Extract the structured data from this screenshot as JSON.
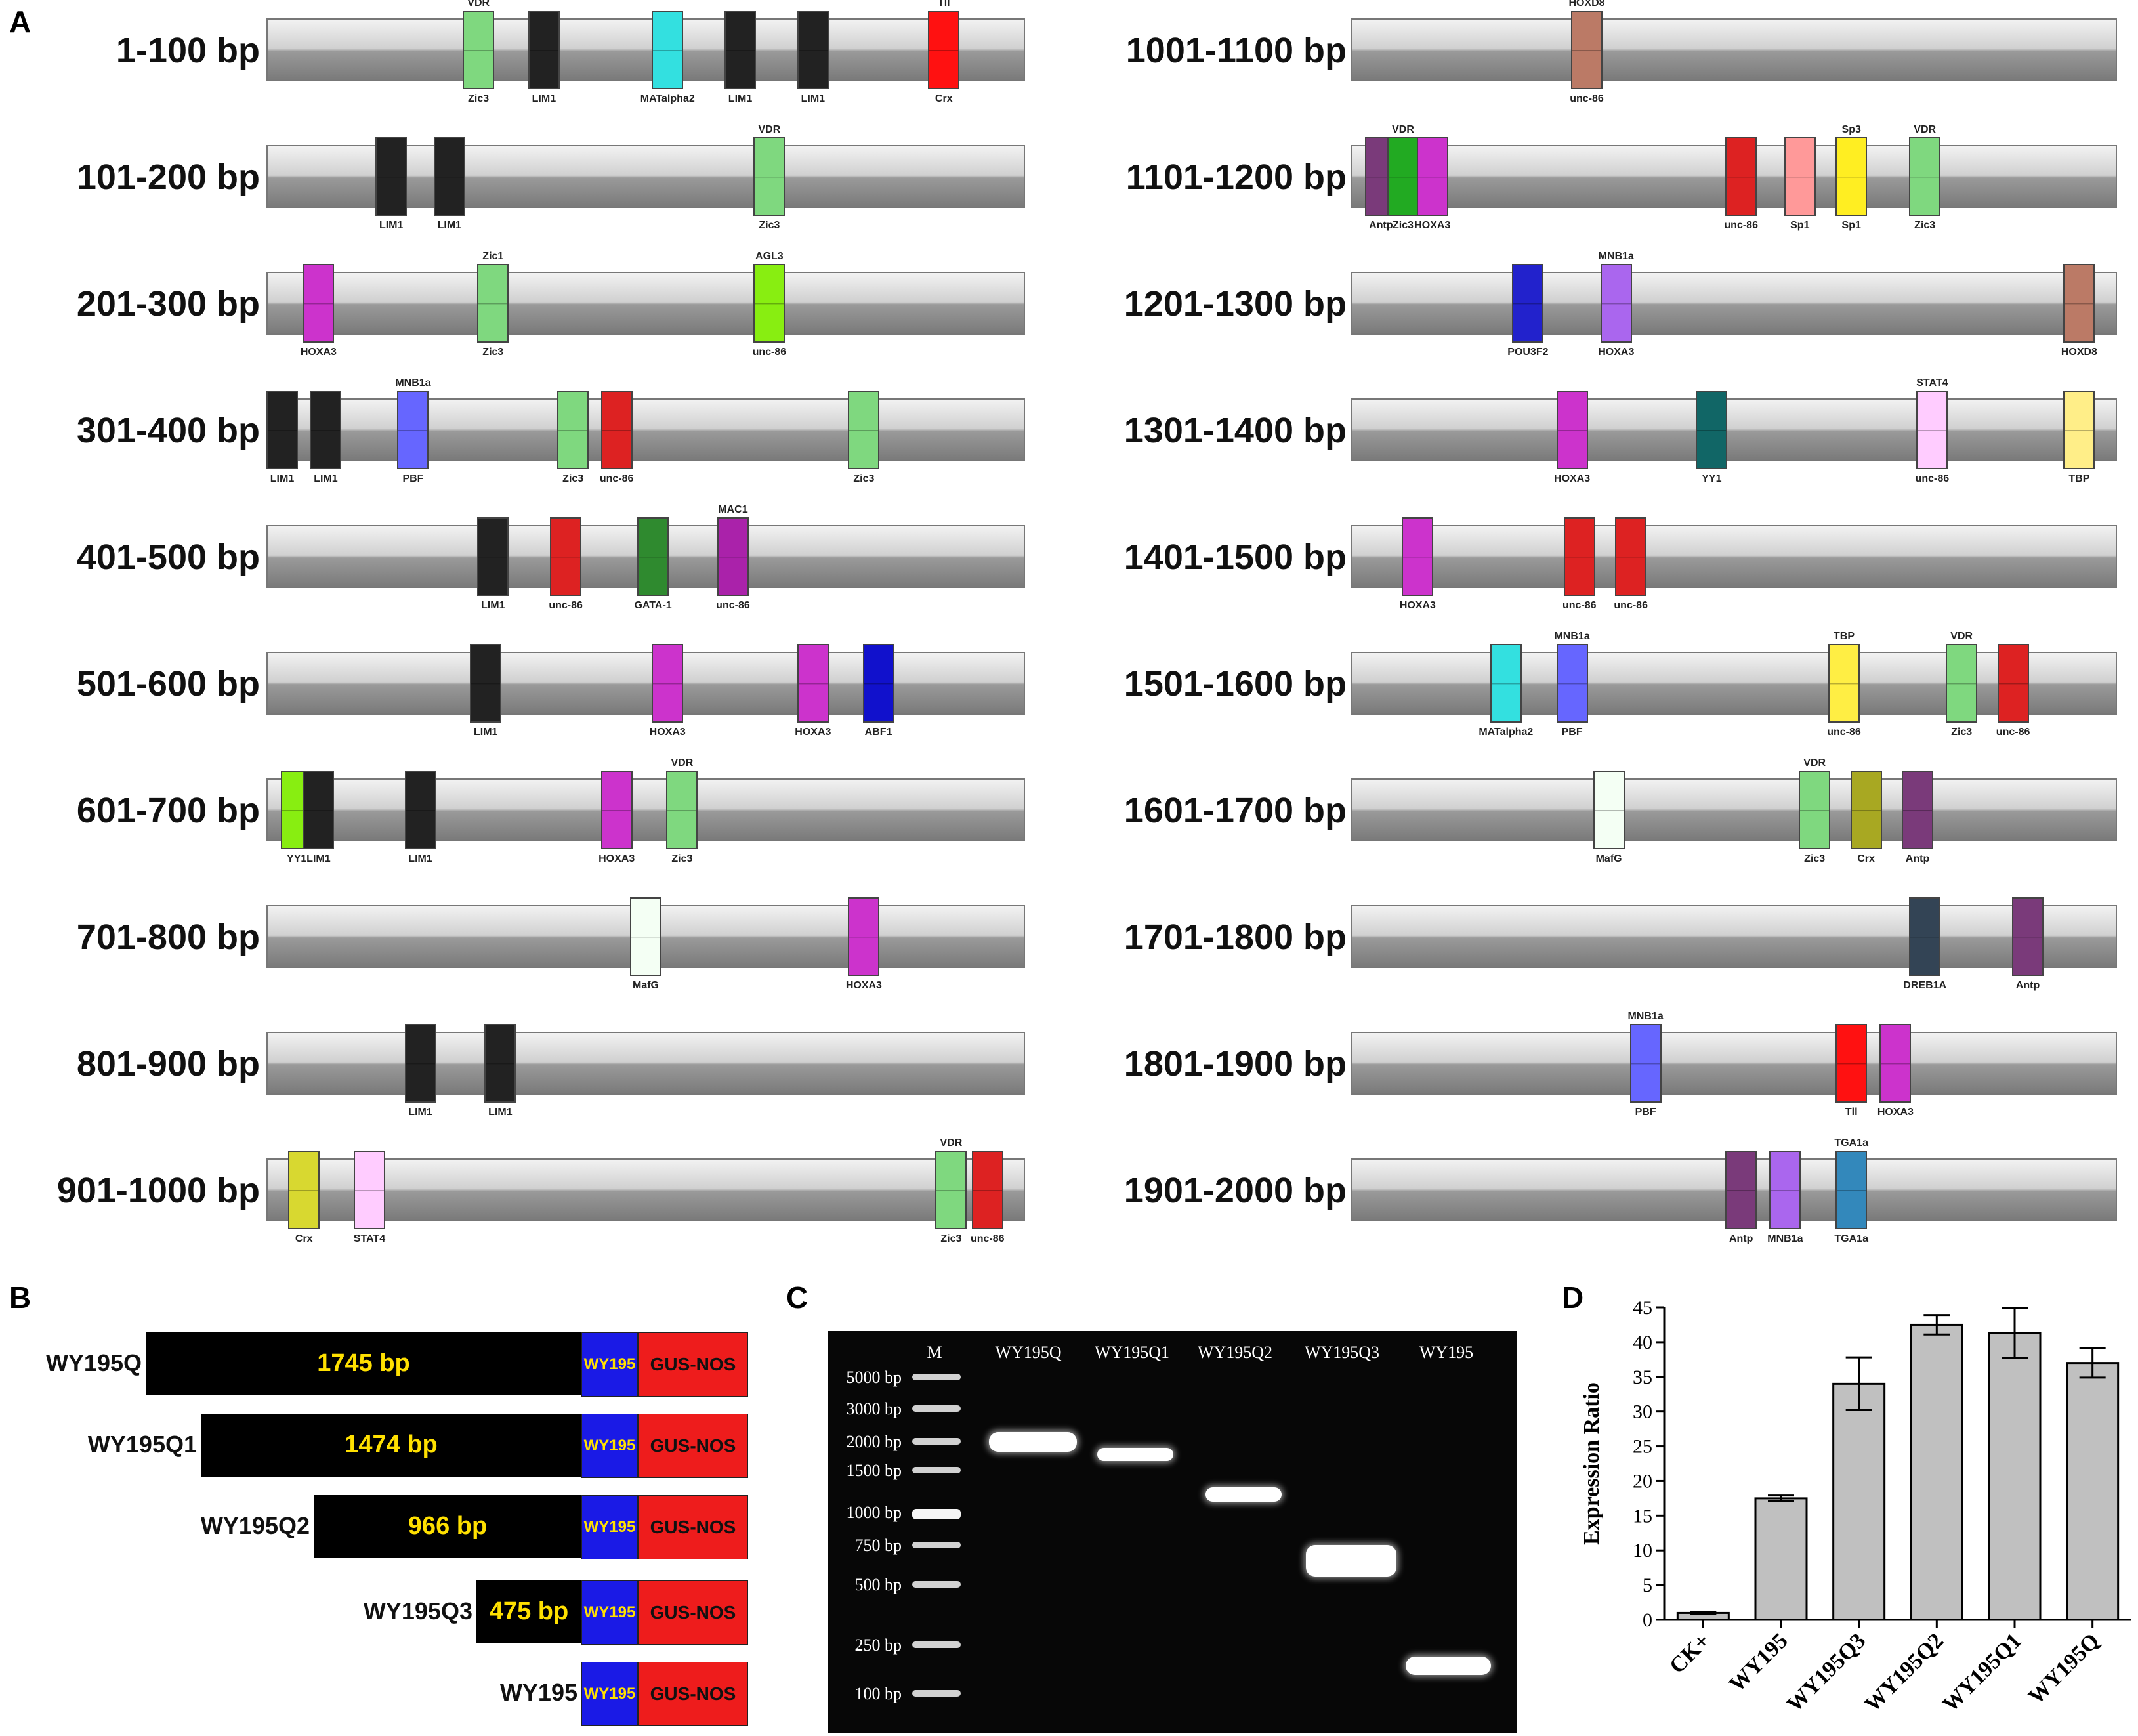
{
  "panels": {
    "a": "A",
    "b": "B",
    "c": "C",
    "d": "D"
  },
  "panelA": {
    "rows_left": [
      "1-100 bp",
      "101-200 bp",
      "201-300 bp",
      "301-400 bp",
      "401-500 bp",
      "501-600 bp",
      "601-700 bp",
      "701-800 bp",
      "801-900 bp",
      "901-1000 bp"
    ],
    "rows_right": [
      "1001-1100 bp",
      "1101-1200 bp",
      "1201-1300 bp",
      "1301-1400 bp",
      "1401-1500 bp",
      "1501-1600 bp",
      "1601-1700 bp",
      "1701-1800 bp",
      "1801-1900 bp",
      "1901-2000 bp"
    ],
    "elements": [
      {
        "row": 0,
        "pos": 27,
        "name": "Zic3",
        "top": "VDR",
        "color": "#7fd87f"
      },
      {
        "row": 0,
        "pos": 36,
        "name": "LIM1",
        "color": "#222222"
      },
      {
        "row": 0,
        "pos": 53,
        "name": "MATalpha2",
        "color": "#33e0e0"
      },
      {
        "row": 0,
        "pos": 63,
        "name": "LIM1",
        "color": "#222222"
      },
      {
        "row": 0,
        "pos": 73,
        "name": "LIM1",
        "color": "#222222"
      },
      {
        "row": 0,
        "pos": 91,
        "name": "Crx",
        "top": "Tll",
        "color": "#ff1111"
      },
      {
        "row": 1,
        "pos": 15,
        "name": "LIM1",
        "color": "#222222"
      },
      {
        "row": 1,
        "pos": 23,
        "name": "LIM1",
        "color": "#222222"
      },
      {
        "row": 1,
        "pos": 67,
        "name": "Zic3",
        "top": "VDR",
        "color": "#7fd87f"
      },
      {
        "row": 2,
        "pos": 5,
        "name": "HOXA3",
        "color": "#cc33cc"
      },
      {
        "row": 2,
        "pos": 29,
        "name": "Zic3",
        "top": "Zic1",
        "color": "#7fd87f"
      },
      {
        "row": 2,
        "pos": 67,
        "name": "unc-86",
        "top": "AGL3",
        "color": "#88ee11"
      },
      {
        "row": 3,
        "pos": 0,
        "name": "LIM1",
        "color": "#222222"
      },
      {
        "row": 3,
        "pos": 6,
        "name": "LIM1",
        "color": "#222222"
      },
      {
        "row": 3,
        "pos": 18,
        "name": "PBF",
        "top": "MNB1a",
        "color": "#6666ff"
      },
      {
        "row": 3,
        "pos": 40,
        "name": "Zic3",
        "color": "#7fd87f"
      },
      {
        "row": 3,
        "pos": 46,
        "name": "unc-86",
        "color": "#dd2222"
      },
      {
        "row": 3,
        "pos": 80,
        "name": "Zic3",
        "color": "#7fd87f"
      },
      {
        "row": 4,
        "pos": 29,
        "name": "LIM1",
        "color": "#222222"
      },
      {
        "row": 4,
        "pos": 39,
        "name": "unc-86",
        "color": "#dd2222"
      },
      {
        "row": 4,
        "pos": 51,
        "name": "GATA-1",
        "color": "#2f8a2f"
      },
      {
        "row": 4,
        "pos": 62,
        "name": "unc-86",
        "top": "MAC1",
        "color": "#aa22aa"
      },
      {
        "row": 5,
        "pos": 28,
        "name": "LIM1",
        "color": "#222222"
      },
      {
        "row": 5,
        "pos": 53,
        "name": "HOXA3",
        "color": "#cc33cc"
      },
      {
        "row": 5,
        "pos": 73,
        "name": "HOXA3",
        "color": "#cc33cc"
      },
      {
        "row": 5,
        "pos": 82,
        "name": "ABF1",
        "color": "#1111cc"
      },
      {
        "row": 6,
        "pos": 2,
        "name": "YY1",
        "color": "#88ee11"
      },
      {
        "row": 6,
        "pos": 5,
        "name": "LIM1",
        "color": "#222222"
      },
      {
        "row": 6,
        "pos": 19,
        "name": "LIM1",
        "color": "#222222"
      },
      {
        "row": 6,
        "pos": 46,
        "name": "HOXA3",
        "color": "#cc33cc"
      },
      {
        "row": 6,
        "pos": 55,
        "name": "Zic3",
        "top": "VDR",
        "color": "#7fd87f"
      },
      {
        "row": 7,
        "pos": 50,
        "name": "MafG",
        "color": "#f4fff4"
      },
      {
        "row": 7,
        "pos": 80,
        "name": "HOXA3",
        "color": "#cc33cc"
      },
      {
        "row": 8,
        "pos": 19,
        "name": "LIM1",
        "color": "#222222"
      },
      {
        "row": 8,
        "pos": 30,
        "name": "LIM1",
        "color": "#222222"
      },
      {
        "row": 9,
        "pos": 3,
        "name": "Crx",
        "color": "#d8d830"
      },
      {
        "row": 9,
        "pos": 12,
        "name": "STAT4",
        "color": "#ffccff"
      },
      {
        "row": 9,
        "pos": 92,
        "name": "Zic3",
        "top": "VDR",
        "color": "#7fd87f"
      },
      {
        "row": 9,
        "pos": 97,
        "name": "unc-86",
        "color": "#dd2222"
      },
      {
        "row": 10,
        "pos": 30,
        "name": "unc-86",
        "top": "HOXD8",
        "color": "#bb7a66"
      },
      {
        "row": 11,
        "pos": 2,
        "name": "Antp",
        "color": "#7a3a7a"
      },
      {
        "row": 11,
        "pos": 5,
        "name": "Zic3",
        "top": "VDR",
        "color": "#22aa22"
      },
      {
        "row": 11,
        "pos": 9,
        "name": "HOXA3",
        "color": "#cc33cc"
      },
      {
        "row": 11,
        "pos": 51,
        "name": "unc-86",
        "color": "#dd2222"
      },
      {
        "row": 11,
        "pos": 59,
        "name": "Sp1",
        "color": "#ff9999"
      },
      {
        "row": 11,
        "pos": 66,
        "name": "Sp1",
        "top": "Sp3",
        "color": "#ffee22"
      },
      {
        "row": 11,
        "pos": 76,
        "name": "Zic3",
        "top": "VDR",
        "color": "#7fd87f"
      },
      {
        "row": 12,
        "pos": 22,
        "name": "POU3F2",
        "color": "#2222cc"
      },
      {
        "row": 12,
        "pos": 34,
        "name": "HOXA3",
        "top": "MNB1a",
        "color": "#aa66ee"
      },
      {
        "row": 12,
        "pos": 97,
        "name": "HOXD8",
        "color": "#bb7a66"
      },
      {
        "row": 13,
        "pos": 28,
        "name": "HOXA3",
        "color": "#cc33cc"
      },
      {
        "row": 13,
        "pos": 47,
        "name": "YY1",
        "color": "#116666"
      },
      {
        "row": 13,
        "pos": 77,
        "name": "unc-86",
        "top": "STAT4",
        "color": "#ffccff"
      },
      {
        "row": 13,
        "pos": 97,
        "name": "TBP",
        "color": "#ffee88"
      },
      {
        "row": 14,
        "pos": 7,
        "name": "HOXA3",
        "color": "#cc33cc"
      },
      {
        "row": 14,
        "pos": 29,
        "name": "unc-86",
        "color": "#dd2222"
      },
      {
        "row": 14,
        "pos": 36,
        "name": "unc-86",
        "color": "#dd2222"
      },
      {
        "row": 15,
        "pos": 19,
        "name": "MATalpha2",
        "color": "#33e0e0"
      },
      {
        "row": 15,
        "pos": 28,
        "name": "PBF",
        "top": "MNB1a",
        "color": "#6666ff"
      },
      {
        "row": 15,
        "pos": 65,
        "name": "unc-86",
        "top": "TBP",
        "color": "#ffee44"
      },
      {
        "row": 15,
        "pos": 81,
        "name": "Zic3",
        "top": "VDR",
        "color": "#7fd87f"
      },
      {
        "row": 15,
        "pos": 88,
        "name": "unc-86",
        "color": "#dd2222"
      },
      {
        "row": 16,
        "pos": 33,
        "name": "MafG",
        "color": "#f4fff4"
      },
      {
        "row": 16,
        "pos": 61,
        "name": "Zic3",
        "top": "VDR",
        "color": "#7fd87f"
      },
      {
        "row": 16,
        "pos": 68,
        "name": "Crx",
        "color": "#a8a822"
      },
      {
        "row": 16,
        "pos": 75,
        "name": "Antp",
        "color": "#7a3a7a"
      },
      {
        "row": 17,
        "pos": 76,
        "name": "DREB1A",
        "color": "#334455"
      },
      {
        "row": 17,
        "pos": 90,
        "name": "Antp",
        "color": "#7a3a7a"
      },
      {
        "row": 18,
        "pos": 38,
        "name": "PBF",
        "top": "MNB1a",
        "color": "#6666ff"
      },
      {
        "row": 18,
        "pos": 66,
        "name": "Tll",
        "color": "#ff1111"
      },
      {
        "row": 18,
        "pos": 72,
        "name": "HOXA3",
        "color": "#cc33cc"
      },
      {
        "row": 19,
        "pos": 51,
        "name": "Antp",
        "color": "#7a3a7a"
      },
      {
        "row": 19,
        "pos": 57,
        "name": "MNB1a",
        "color": "#aa66ee"
      },
      {
        "row": 19,
        "pos": 66,
        "name": "TGA1a",
        "top": "TGA1a",
        "color": "#3388bb"
      }
    ]
  },
  "panelB": {
    "constructs": [
      {
        "name": "WY195Q",
        "len": "1745 bp"
      },
      {
        "name": "WY195Q1",
        "len": "1474 bp"
      },
      {
        "name": "WY195Q2",
        "len": "966 bp"
      },
      {
        "name": "WY195Q3",
        "len": "475 bp"
      },
      {
        "name": "WY195",
        "len": ""
      }
    ],
    "wy_label": "WY195",
    "gus_label": "GUS-NOS"
  },
  "panelC": {
    "lanes": [
      "M",
      "WY195Q",
      "WY195Q1",
      "WY195Q2",
      "WY195Q3",
      "WY195"
    ],
    "ladder": [
      "5000 bp",
      "3000 bp",
      "2000 bp",
      "1500 bp",
      "1000 bp",
      "750 bp",
      "500 bp",
      "250 bp",
      "100 bp"
    ]
  },
  "chart_data": {
    "type": "bar",
    "title": "",
    "xlabel": "",
    "ylabel": "Expression Ratio",
    "ylim": [
      0,
      45
    ],
    "yticks": [
      0,
      5,
      10,
      15,
      20,
      25,
      30,
      35,
      40,
      45
    ],
    "categories": [
      "CK+",
      "WY195",
      "WY195Q3",
      "WY195Q2",
      "WY195Q1",
      "WY195Q"
    ],
    "values": [
      1.0,
      17.5,
      34.0,
      42.5,
      41.3,
      37.0
    ],
    "errors": [
      0.1,
      0.4,
      3.8,
      1.4,
      3.6,
      2.1
    ],
    "bar_color": "#c0c0c0"
  }
}
